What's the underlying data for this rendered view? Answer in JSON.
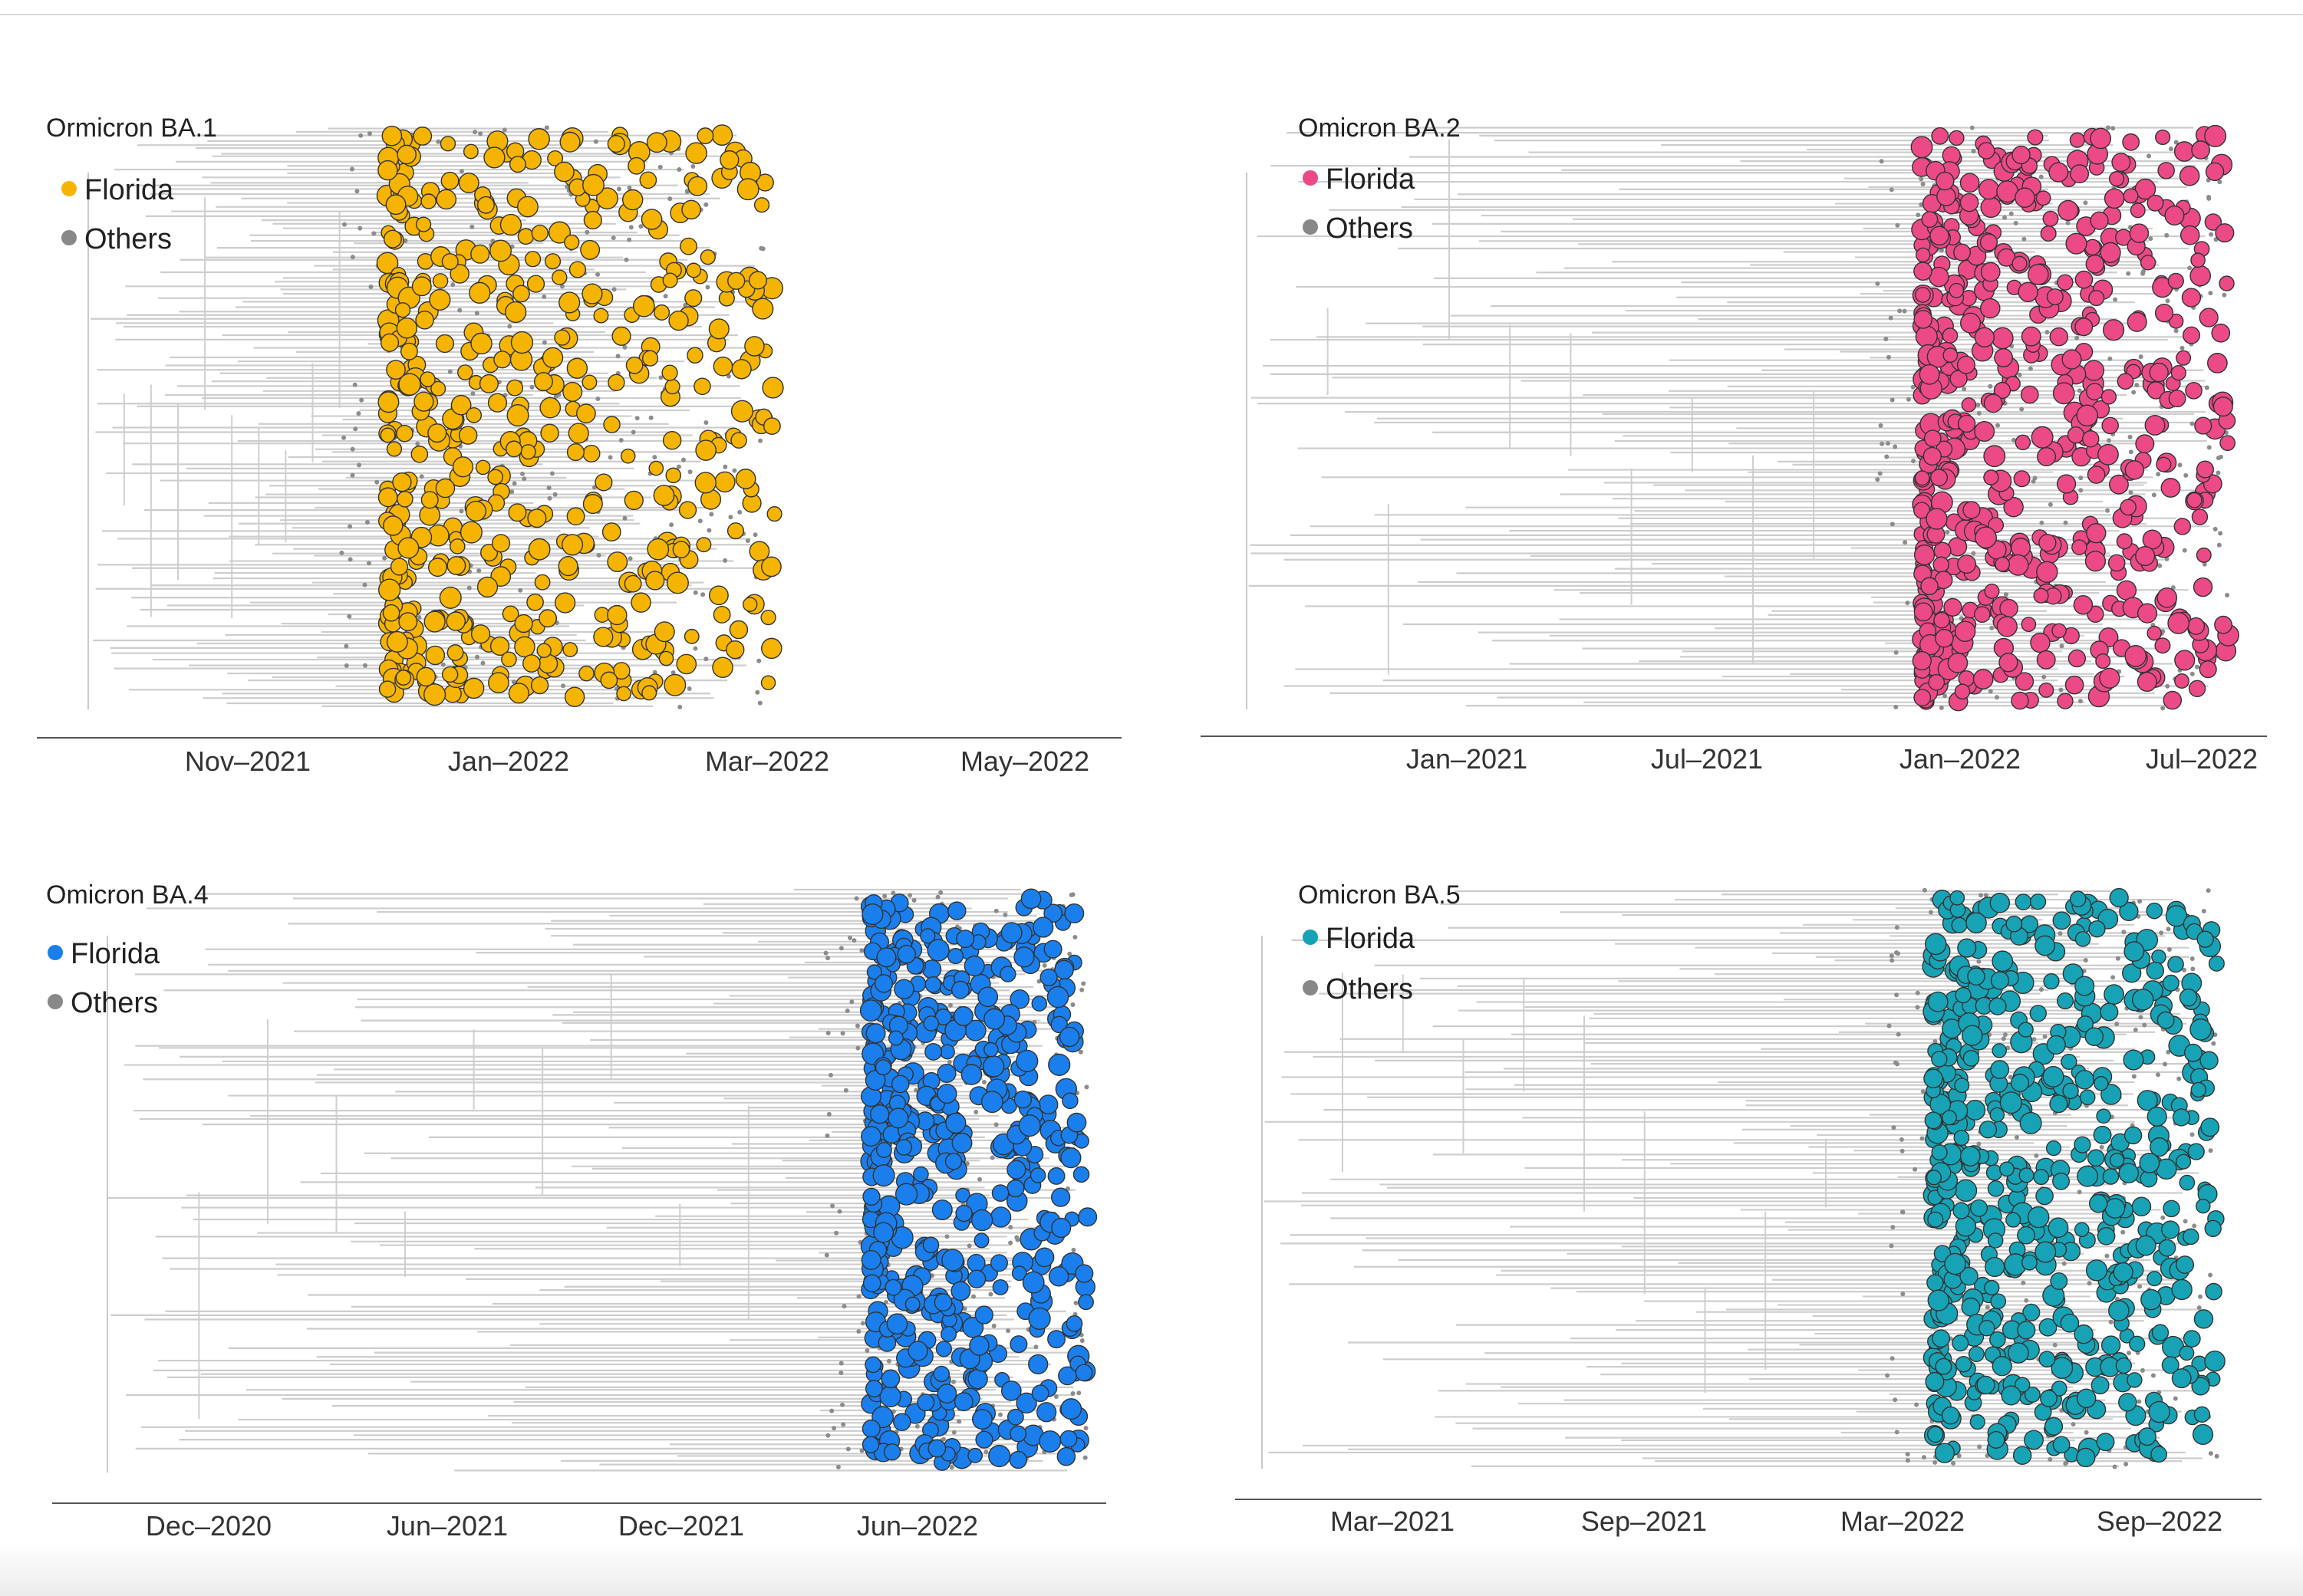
{
  "figure": "Phylogenetic time trees of Omicron lineages with Florida samples highlighted",
  "chart_data": [
    {
      "type": "scatter",
      "title": "Ormicron BA.1",
      "legend": [
        {
          "label": "Florida",
          "color": "#f5b400"
        },
        {
          "label": "Others",
          "color": "#888888"
        }
      ],
      "xticks": [
        "Nov–2021",
        "Jan–2022",
        "Mar–2022",
        "May–2022"
      ],
      "xlim": [
        "2021-09",
        "2022-06"
      ],
      "cluster_start": "2021-12",
      "cluster_end": "2022-03"
    },
    {
      "type": "scatter",
      "title": "Omicron BA.2",
      "legend": [
        {
          "label": "Florida",
          "color": "#ec4a86"
        },
        {
          "label": "Others",
          "color": "#888888"
        }
      ],
      "xticks": [
        "Jan–2021",
        "Jul–2021",
        "Jan–2022",
        "Jul–2022"
      ],
      "xlim": [
        "2020-05",
        "2022-08"
      ],
      "cluster_start": "2022-01",
      "cluster_end": "2022-07"
    },
    {
      "type": "scatter",
      "title": "Omicron BA.4",
      "legend": [
        {
          "label": "Florida",
          "color": "#1a7fec"
        },
        {
          "label": "Others",
          "color": "#888888"
        }
      ],
      "xticks": [
        "Dec–2020",
        "Jun–2021",
        "Dec–2021",
        "Jun–2022"
      ],
      "xlim": [
        "2020-08",
        "2022-10"
      ],
      "cluster_start": "2022-05",
      "cluster_end": "2022-09"
    },
    {
      "type": "scatter",
      "title": "Omicron BA.5",
      "legend": [
        {
          "label": "Florida",
          "color": "#17a3b5"
        },
        {
          "label": "Others",
          "color": "#888888"
        }
      ],
      "xticks": [
        "Mar–2021",
        "Sep–2021",
        "Mar–2022",
        "Sep–2022"
      ],
      "xlim": [
        "2020-10",
        "2022-10"
      ],
      "cluster_start": "2022-03",
      "cluster_end": "2022-09"
    }
  ]
}
